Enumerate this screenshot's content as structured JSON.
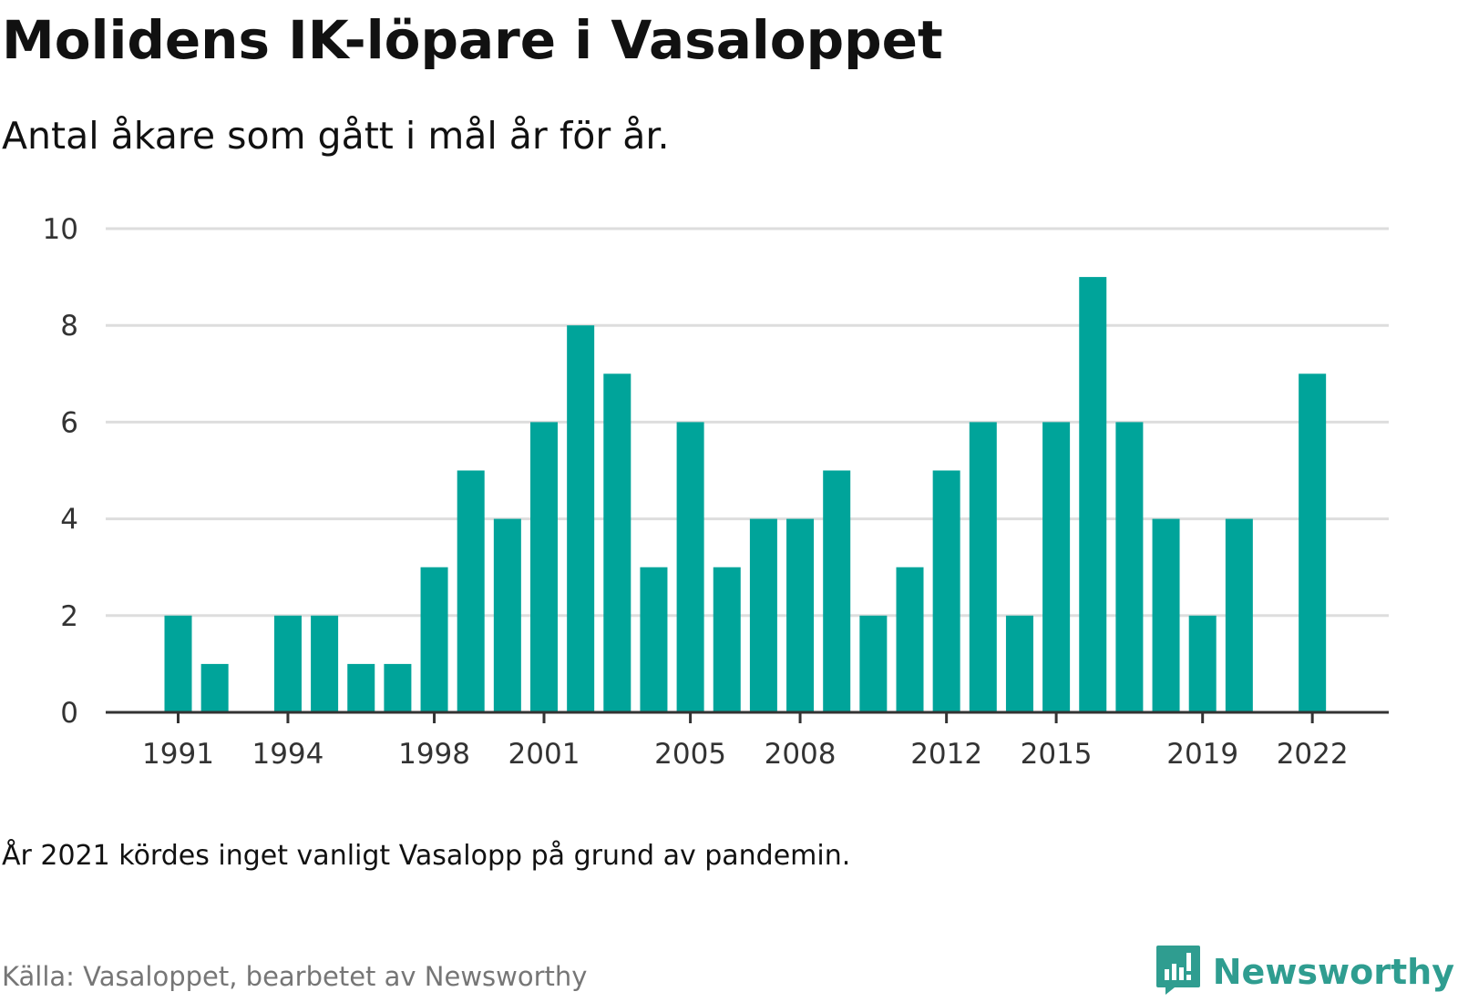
{
  "title": "Molidens IK-löpare i Vasaloppet",
  "subtitle": "Antal åkare som gått i mål år för år.",
  "note": "År 2021 kördes inget vanligt Vasalopp på grund av pandemin.",
  "source": "Källa: Vasaloppet, bearbetet av Newsworthy",
  "brand": {
    "name": "Newsworthy",
    "icon": "newsworthy-logo-icon"
  },
  "colors": {
    "bar": "#00a49a",
    "grid": "#dddddd",
    "axis": "#333333",
    "brand": "#2f9d90"
  },
  "chart_data": {
    "type": "bar",
    "categories": [
      1991,
      1992,
      1993,
      1994,
      1995,
      1996,
      1997,
      1998,
      1999,
      2000,
      2001,
      2002,
      2003,
      2004,
      2005,
      2006,
      2007,
      2008,
      2009,
      2010,
      2011,
      2012,
      2013,
      2014,
      2015,
      2016,
      2017,
      2018,
      2019,
      2020,
      2021,
      2022
    ],
    "values": [
      2,
      1,
      0,
      2,
      2,
      1,
      1,
      3,
      5,
      4,
      6,
      8,
      7,
      3,
      6,
      3,
      4,
      4,
      5,
      2,
      3,
      5,
      6,
      2,
      6,
      9,
      6,
      4,
      2,
      4,
      0,
      7
    ],
    "x_tick_labels": [
      "1991",
      "1994",
      "1998",
      "2001",
      "2005",
      "2008",
      "2012",
      "2015",
      "2019",
      "2022"
    ],
    "y_ticks": [
      "0",
      "2",
      "4",
      "6",
      "8",
      "10"
    ],
    "ylim": [
      0,
      10
    ],
    "grid": true,
    "legend": "none"
  }
}
